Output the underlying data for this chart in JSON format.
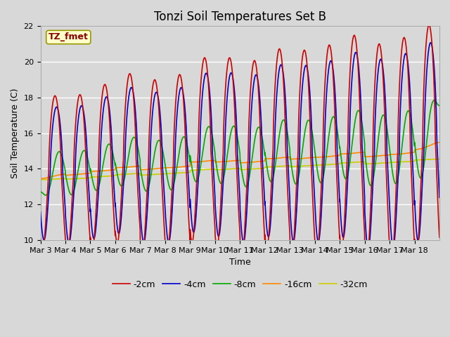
{
  "title": "Tonzi Soil Temperatures Set B",
  "xlabel": "Time",
  "ylabel": "Soil Temperature (C)",
  "annotation": "TZ_fmet",
  "annotation_color": "#8B0000",
  "annotation_bg": "#FFFFCC",
  "ylim": [
    10,
    22
  ],
  "yticks": [
    10,
    12,
    14,
    16,
    18,
    20,
    22
  ],
  "background_color": "#D8D8D8",
  "plot_bg": "#D8D8D8",
  "grid_color": "#FFFFFF",
  "series_colors": {
    "-2cm": "#CC0000",
    "-4cm": "#0000CC",
    "-8cm": "#00AA00",
    "-16cm": "#FF8800",
    "-32cm": "#CCCC00"
  },
  "legend_labels": [
    "-2cm",
    "-4cm",
    "-8cm",
    "-16cm",
    "-32cm"
  ],
  "xtick_labels": [
    "Mar 3",
    "Mar 4",
    "Mar 5",
    "Mar 6",
    "Mar 7",
    "Mar 8",
    "Mar 9",
    "Mar 10",
    "Mar 11",
    "Mar 12",
    "Mar 13",
    "Mar 14",
    "Mar 15",
    "Mar 16",
    "Mar 17",
    "Mar 18"
  ],
  "n_days": 16,
  "figwidth": 6.4,
  "figheight": 4.8,
  "dpi": 100,
  "title_fontsize": 12,
  "axis_label_fontsize": 9,
  "tick_fontsize": 8,
  "legend_fontsize": 9,
  "line_width": 1.2
}
